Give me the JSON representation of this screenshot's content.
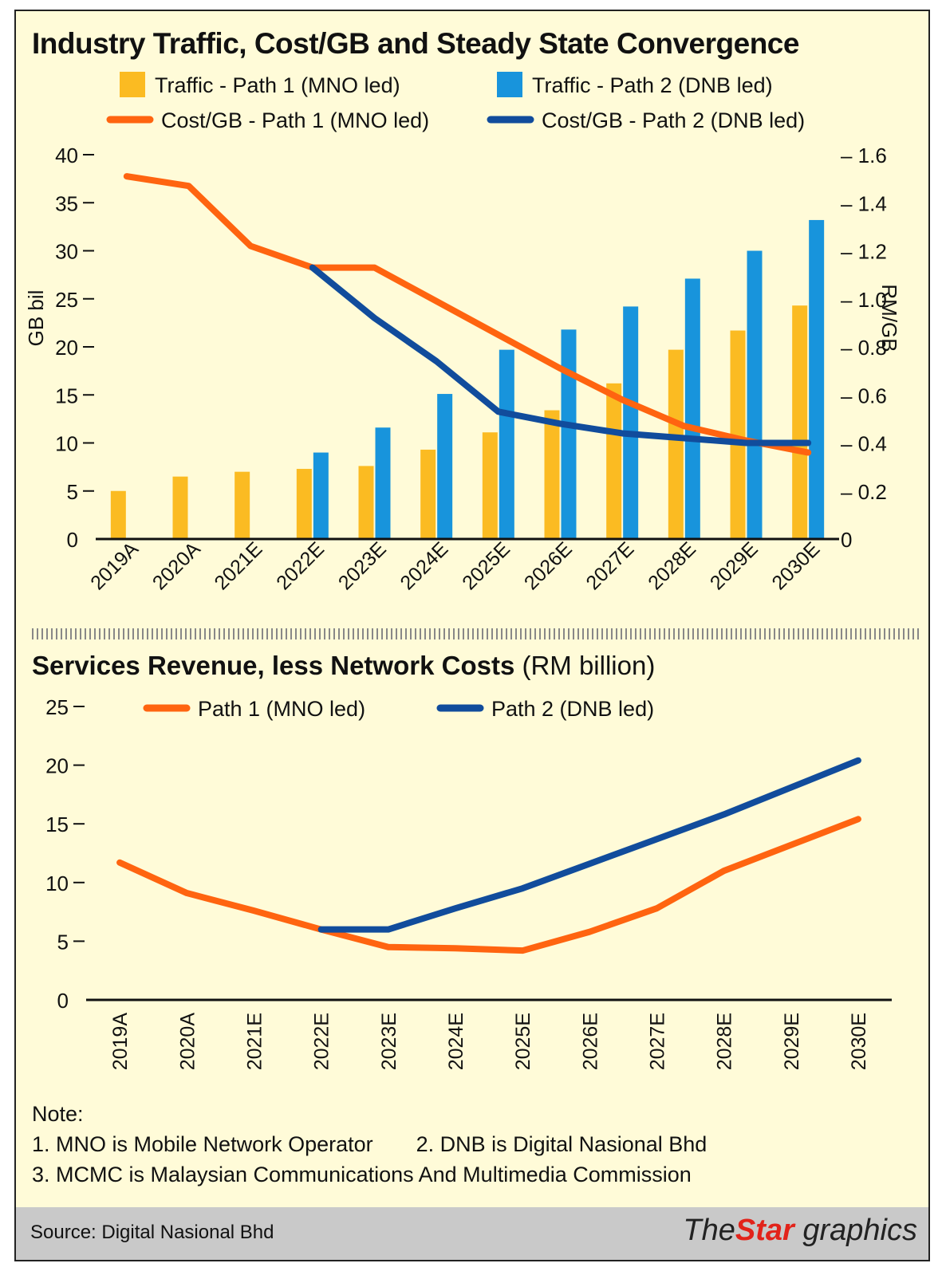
{
  "chart_data": [
    {
      "type": "bar+line",
      "title": "Industry Traffic, Cost/GB and Steady State Convergence",
      "categories": [
        "2019A",
        "2020A",
        "2021E",
        "2022E",
        "2023E",
        "2024E",
        "2025E",
        "2026E",
        "2027E",
        "2028E",
        "2029E",
        "2030E"
      ],
      "ylabel": "GB bil",
      "ylim": [
        0,
        40
      ],
      "yticks": [
        "0",
        "5",
        "10",
        "15",
        "20",
        "25",
        "30",
        "35",
        "40"
      ],
      "y2label": "RM/GB",
      "y2lim": [
        0,
        1.6
      ],
      "y2ticks": [
        "0",
        "0.2",
        "0.4",
        "0.6",
        "0.8",
        "1.0",
        "1.2",
        "1.4",
        "1.6"
      ],
      "bars": [
        {
          "name": "Traffic - Path 1 (MNO led)",
          "color": "#fbbb22",
          "values": [
            5.0,
            6.5,
            7.0,
            7.3,
            7.6,
            9.3,
            11.1,
            13.4,
            16.2,
            19.7,
            21.7,
            24.3
          ]
        },
        {
          "name": "Traffic - Path 2 (DNB led)",
          "color": "#1894dc",
          "values": [
            null,
            null,
            null,
            9.0,
            11.6,
            15.1,
            19.7,
            21.8,
            24.2,
            27.1,
            30.0,
            33.2
          ]
        }
      ],
      "lines": [
        {
          "name": "Cost/GB - Path 1 (MNO led)",
          "color": "#ff6410",
          "values": [
            1.51,
            1.47,
            1.22,
            1.13,
            1.13,
            0.99,
            0.85,
            0.71,
            0.58,
            0.47,
            0.41,
            0.36
          ]
        },
        {
          "name": "Cost/GB - Path 2 (DNB led)",
          "color": "#114c9c",
          "values": [
            null,
            null,
            null,
            1.13,
            0.92,
            0.74,
            0.53,
            0.48,
            0.44,
            0.42,
            0.4,
            0.4
          ]
        }
      ],
      "legend_position": "top"
    },
    {
      "type": "line",
      "title_bold": "Services Revenue, less Network Costs",
      "title_rest": " (RM billion)",
      "categories": [
        "2019A",
        "2020A",
        "2021E",
        "2022E",
        "2023E",
        "2024E",
        "2025E",
        "2026E",
        "2027E",
        "2028E",
        "2029E",
        "2030E"
      ],
      "ylim": [
        0,
        25
      ],
      "yticks": [
        "0",
        "5",
        "10",
        "15",
        "20",
        "25"
      ],
      "series": [
        {
          "name": "Path 1 (MNO led)",
          "color": "#ff6410",
          "values": [
            11.7,
            9.1,
            7.6,
            6.0,
            4.5,
            4.4,
            4.2,
            5.8,
            7.8,
            11.0,
            13.2,
            15.4
          ]
        },
        {
          "name": "Path 2 (DNB led)",
          "color": "#114c9c",
          "values": [
            null,
            null,
            null,
            6.0,
            6.0,
            7.8,
            9.5,
            11.6,
            13.7,
            15.8,
            18.1,
            20.4
          ]
        }
      ],
      "legend_position": "top"
    }
  ],
  "notes": {
    "heading": "Note:",
    "n1": "1. MNO is Mobile Network Operator",
    "n2": "2. DNB is Digital Nasional Bhd",
    "n3": "3. MCMC is Malaysian Communications And Multimedia Commission"
  },
  "footer": {
    "source": "Source: Digital Nasional Bhd",
    "brand_the": "The",
    "brand_star": "Star",
    "brand_graphics": " graphics"
  }
}
